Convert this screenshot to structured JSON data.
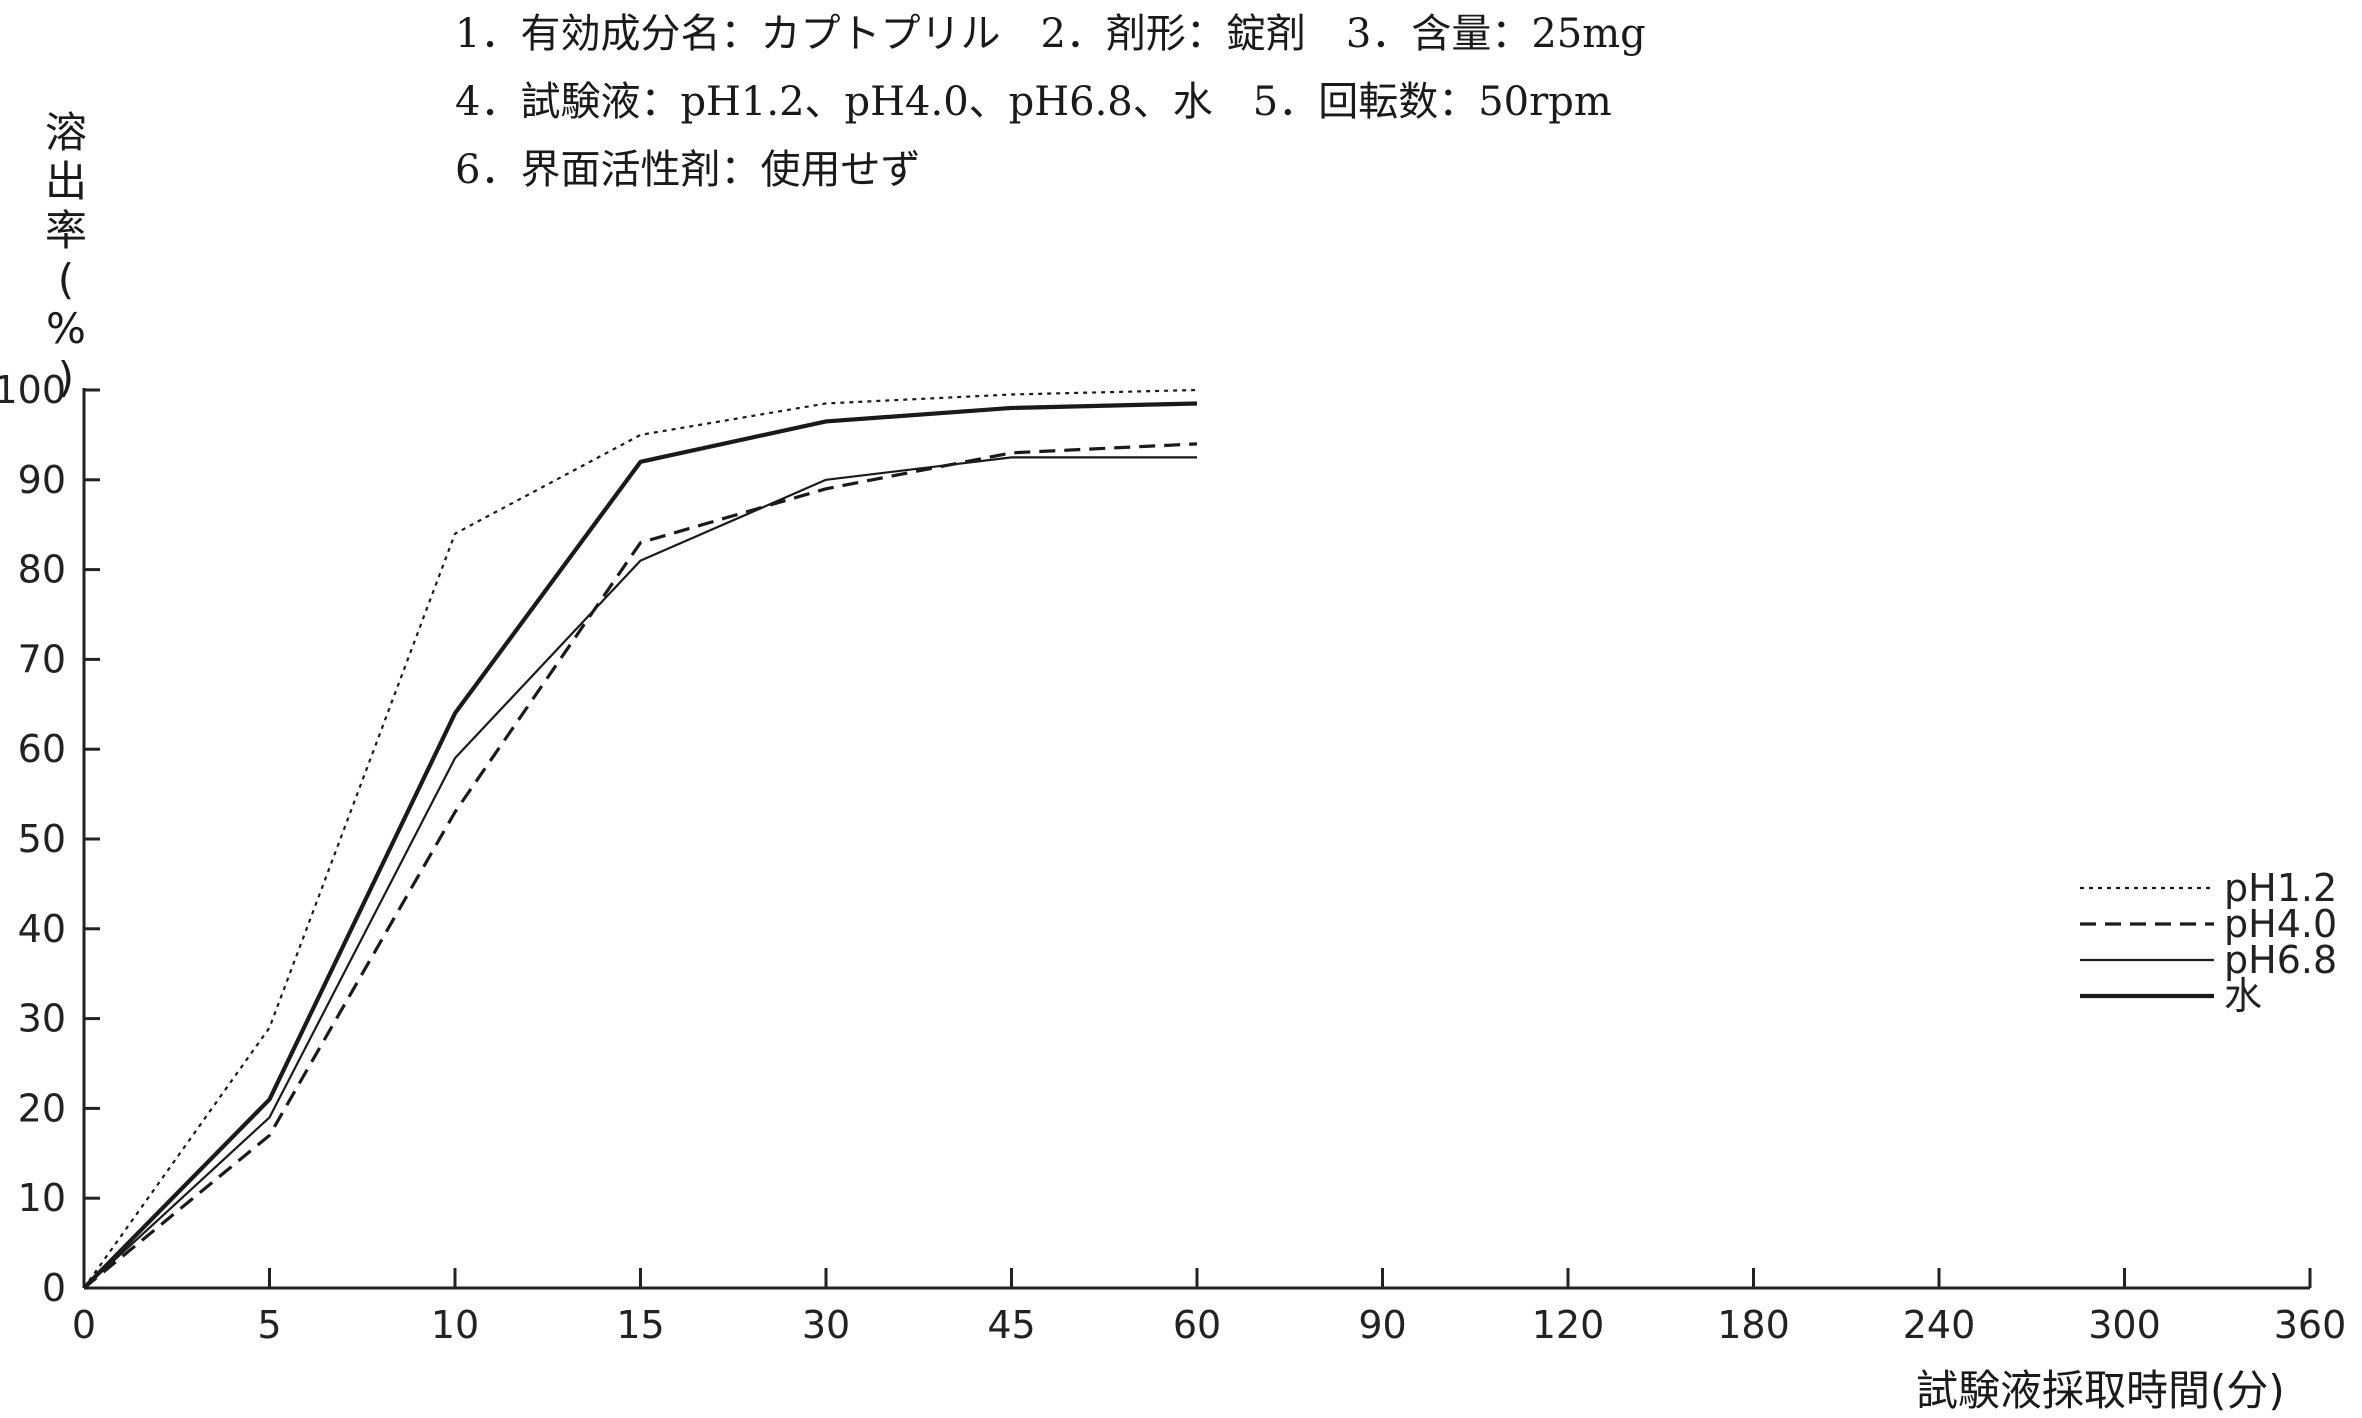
{
  "header": {
    "line1": "1．有効成分名：カプトプリル　2．剤形：錠剤　3．含量：25mg",
    "line2": "4．試験液：pH1.2、pH4.0、pH6.8、水　5．回転数：50rpm",
    "line3": "6．界面活性剤：使用せず"
  },
  "ylabel_chars": [
    "溶",
    "出",
    "率",
    "(",
    "%",
    ")"
  ],
  "xlabel": "試験液採取時間(分)",
  "chart_data": {
    "type": "line",
    "title": "",
    "xlabel": "試験液採取時間(分)",
    "ylabel": "溶出率(%)",
    "x": [
      0,
      5,
      10,
      15,
      30,
      45,
      60,
      90,
      120,
      180,
      240,
      300,
      360
    ],
    "x_scale": "categorical (equally spaced ticks)",
    "ylim": [
      0,
      100
    ],
    "yticks": [
      0,
      10,
      20,
      30,
      40,
      50,
      60,
      70,
      80,
      90,
      100
    ],
    "grid": false,
    "legend_position": "right",
    "series": [
      {
        "name": "pH1.2",
        "style": "dotted",
        "x": [
          0,
          5,
          10,
          15,
          30,
          45,
          60
        ],
        "values": [
          0,
          29,
          84,
          95,
          98.5,
          99.5,
          100
        ]
      },
      {
        "name": "pH4.0",
        "style": "dashed",
        "x": [
          0,
          5,
          10,
          15,
          30,
          45,
          60
        ],
        "values": [
          0,
          17,
          53,
          83,
          89,
          93,
          94
        ]
      },
      {
        "name": "pH6.8",
        "style": "solid",
        "x": [
          0,
          5,
          10,
          15,
          30,
          45,
          60
        ],
        "values": [
          0,
          19,
          59,
          81,
          90,
          92.5,
          92.5
        ]
      },
      {
        "name": "水",
        "style": "solid-thick",
        "x": [
          0,
          5,
          10,
          15,
          30,
          45,
          60
        ],
        "values": [
          0,
          21,
          64,
          92,
          96.5,
          98,
          98.5
        ]
      }
    ]
  }
}
